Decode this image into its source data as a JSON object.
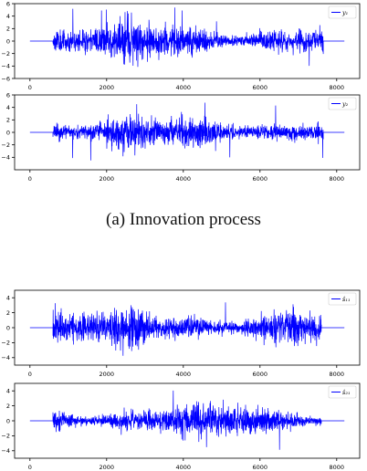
{
  "figure": {
    "caption_a": "(a) Innovation process"
  },
  "chart_data": [
    {
      "type": "line",
      "series": [
        {
          "name": "y₁",
          "color": "#0000ff",
          "active_start": 600,
          "active_end": 7650,
          "amplitude": 1.3,
          "peak": 5.5,
          "trough": -4.2,
          "seed": 11
        }
      ],
      "flat_extent": [
        0,
        8200
      ],
      "xlim": [
        -400,
        8600
      ],
      "ylim": [
        -6,
        6
      ],
      "xticks": [
        0,
        2000,
        4000,
        6000,
        8000
      ],
      "xtick_labels": [
        "0",
        "2000",
        "4000",
        "6000",
        "8000"
      ],
      "yticks": [
        -6,
        -4,
        -2,
        0,
        2,
        4,
        6
      ],
      "ytick_labels": [
        "−6",
        "−4",
        "−2",
        "0",
        "2",
        "4",
        "6"
      ],
      "legend_position": "upper right",
      "legend_label": "y₁"
    },
    {
      "type": "line",
      "series": [
        {
          "name": "y₂",
          "color": "#0000ff",
          "active_start": 600,
          "active_end": 7650,
          "amplitude": 1.2,
          "peak": 5.0,
          "trough": -4.6,
          "seed": 23
        }
      ],
      "flat_extent": [
        0,
        8200
      ],
      "xlim": [
        -400,
        8600
      ],
      "ylim": [
        -6,
        6
      ],
      "xticks": [
        0,
        2000,
        4000,
        6000,
        8000
      ],
      "xtick_labels": [
        "0",
        "2000",
        "4000",
        "6000",
        "8000"
      ],
      "yticks": [
        -4,
        -2,
        0,
        2,
        4,
        6
      ],
      "ytick_labels": [
        "−4",
        "−2",
        "0",
        "2",
        "4",
        "6"
      ],
      "legend_position": "upper right",
      "legend_label": "y₂"
    },
    {
      "type": "line",
      "series": [
        {
          "name": "ŝ₁₁",
          "color": "#0000ff",
          "active_start": 600,
          "active_end": 7600,
          "amplitude": 1.1,
          "peak": 3.6,
          "trough": -4.5,
          "seed": 37
        }
      ],
      "flat_extent": [
        0,
        8200
      ],
      "xlim": [
        -400,
        8600
      ],
      "ylim": [
        -5,
        5
      ],
      "xticks": [
        0,
        2000,
        4000,
        6000,
        8000
      ],
      "xtick_labels": [
        "0",
        "2000",
        "4000",
        "6000",
        "8000"
      ],
      "yticks": [
        -4,
        -2,
        0,
        2,
        4
      ],
      "ytick_labels": [
        "−4",
        "−2",
        "0",
        "2",
        "4"
      ],
      "legend_position": "upper right",
      "legend_label": "ŝ₁₁"
    },
    {
      "type": "line",
      "series": [
        {
          "name": "ŝ₂₁",
          "color": "#0000ff",
          "active_start": 600,
          "active_end": 7600,
          "amplitude": 1.0,
          "peak": 4.2,
          "trough": -3.9,
          "seed": 53
        }
      ],
      "flat_extent": [
        0,
        8200
      ],
      "xlim": [
        -400,
        8600
      ],
      "ylim": [
        -5,
        5
      ],
      "xticks": [
        0,
        2000,
        4000,
        6000,
        8000
      ],
      "xtick_labels": [
        "0",
        "2000",
        "4000",
        "6000",
        "8000"
      ],
      "yticks": [
        -4,
        -2,
        0,
        2,
        4
      ],
      "ytick_labels": [
        "−4",
        "−2",
        "0",
        "2",
        "4"
      ],
      "legend_position": "upper right",
      "legend_label": "ŝ₂₁"
    }
  ]
}
